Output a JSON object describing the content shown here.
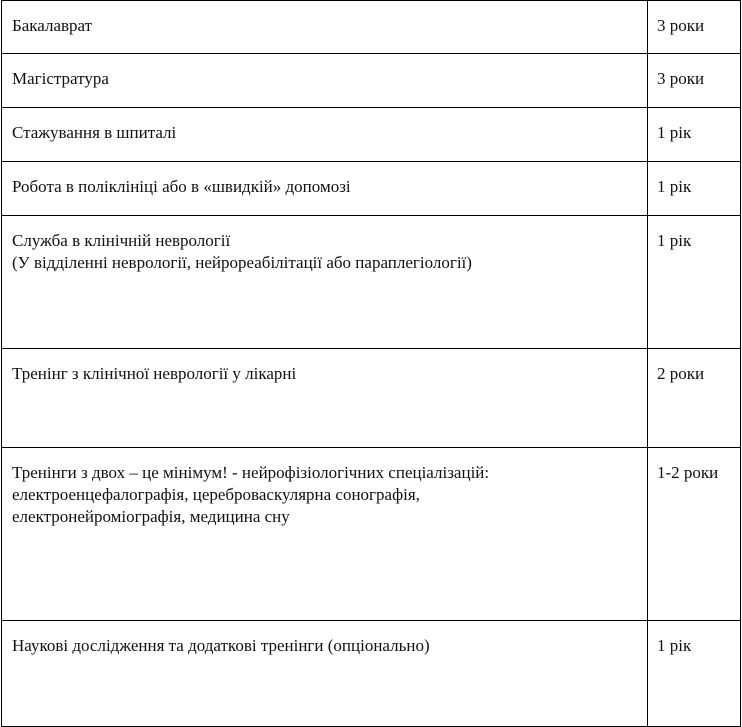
{
  "rows": [
    {
      "stage": "Бакалаврат",
      "note": "",
      "duration": "3 роки"
    },
    {
      "stage": "Магістратура",
      "note": "",
      "duration": "3 роки"
    },
    {
      "stage": "Стажування в шпиталі",
      "note": "",
      "duration": "1 рік"
    },
    {
      "stage": "Робота в поліклініці або в «швидкій» допомозі",
      "note": "",
      "duration": "1 рік"
    },
    {
      "stage": "Служба в клінічній неврології",
      "note": "(У відділенні неврології, нейрореабілітації або параплегіології)",
      "duration": "1 рік"
    },
    {
      "stage": "Тренінг з клінічної неврології у лікарні",
      "note": "",
      "duration": "2 роки"
    },
    {
      "stage": "Тренінги з двох – це мінімум! - нейрофізіологічних спеціалізацій: електроенцефалографія, цереброваскулярна сонографія, електронейроміографія, медицина сну",
      "note": "",
      "duration": "1-2 роки"
    },
    {
      "stage": "Наукові дослідження та додаткові тренінги (опціонально)",
      "note": "",
      "duration": "1 рік"
    }
  ]
}
